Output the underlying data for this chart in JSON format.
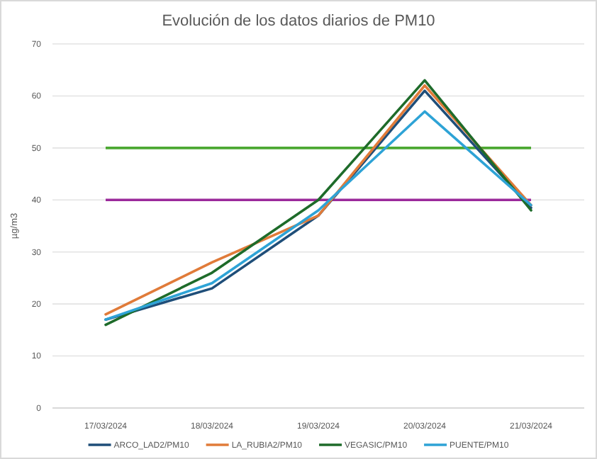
{
  "chart_data": {
    "type": "line",
    "title": "Evolución de los datos diarios de PM10",
    "ylabel": "µg/m3",
    "categories": [
      "17/03/2024",
      "18/03/2024",
      "19/03/2024",
      "20/03/2024",
      "21/03/2024"
    ],
    "series": [
      {
        "name": "ARCO_LAD2/PM10",
        "color": "#1f4e79",
        "values": [
          17,
          23,
          37,
          61,
          38.5
        ]
      },
      {
        "name": "LA_RUBIA2/PM10",
        "color": "#e07b39",
        "values": [
          18,
          28,
          37,
          62,
          39
        ]
      },
      {
        "name": "VEGASIC/PM10",
        "color": "#1e6b2a",
        "values": [
          16,
          26,
          40,
          63,
          38
        ]
      },
      {
        "name": "PUENTE/PM10",
        "color": "#2ea3d6",
        "values": [
          17,
          24,
          38,
          57,
          39
        ]
      }
    ],
    "ref_lines": [
      {
        "axis": "y",
        "value": 50,
        "color": "#4ca832"
      },
      {
        "axis": "y",
        "value": 40,
        "color": "#9b2a9b"
      }
    ],
    "ylim": [
      0,
      70
    ],
    "yticks": [
      0,
      10,
      20,
      30,
      40,
      50,
      60,
      70
    ],
    "grid": "y",
    "legend": "bottom",
    "marker": "none",
    "line_style": "solid"
  }
}
